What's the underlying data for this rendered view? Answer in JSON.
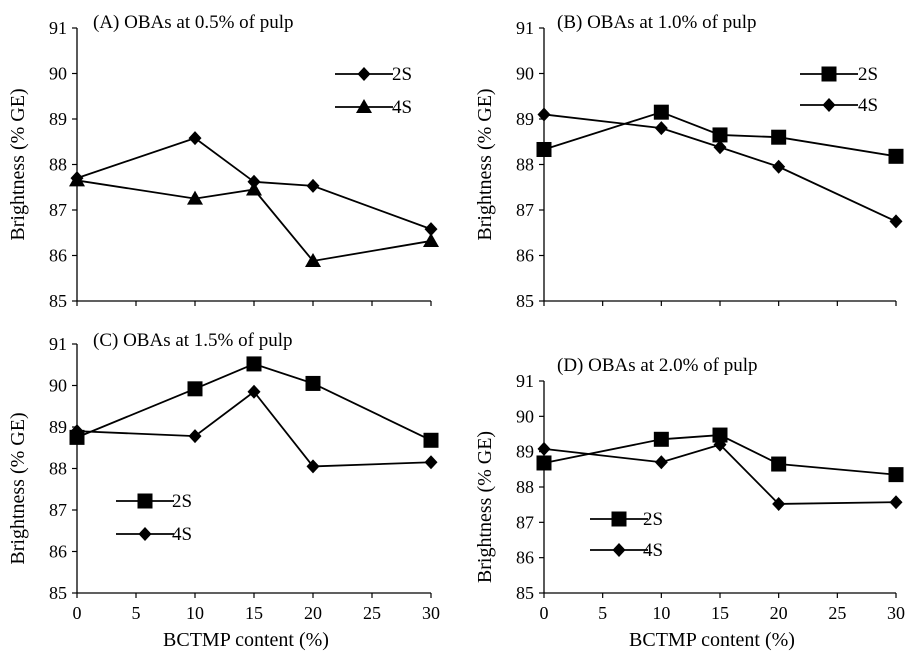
{
  "chart_data": [
    {
      "type": "line",
      "title": "(A) OBAs at 0.5% of pulp",
      "xlabel": "",
      "ylabel": "Brightness (% GE)",
      "x": [
        0,
        10,
        15,
        20,
        30
      ],
      "xticks": [
        "",
        "",
        "",
        "",
        "",
        "",
        ""
      ],
      "xlim": [
        0,
        30
      ],
      "yticks": [
        "85",
        "86",
        "87",
        "88",
        "89",
        "90",
        "91"
      ],
      "ylim": [
        85,
        91
      ],
      "legend_position": "top-right",
      "series": [
        {
          "name": "2S",
          "marker": "diamond",
          "values": [
            87.7,
            88.58,
            87.62,
            87.53,
            86.58
          ]
        },
        {
          "name": "4S",
          "marker": "triangle",
          "values": [
            87.65,
            87.25,
            87.45,
            85.88,
            86.32
          ]
        }
      ]
    },
    {
      "type": "line",
      "title": "(B) OBAs at 1.0% of pulp",
      "xlabel": "",
      "ylabel": "Brightness (% GE)",
      "x": [
        0,
        10,
        15,
        20,
        30
      ],
      "xticks": [
        "",
        "",
        "",
        "",
        "",
        "",
        ""
      ],
      "xlim": [
        0,
        30
      ],
      "yticks": [
        "85",
        "86",
        "87",
        "88",
        "89",
        "90",
        "91"
      ],
      "ylim": [
        85,
        91
      ],
      "legend_position": "top-right",
      "series": [
        {
          "name": "2S",
          "marker": "square",
          "values": [
            88.33,
            89.15,
            88.65,
            88.6,
            88.18
          ]
        },
        {
          "name": "4S",
          "marker": "diamond",
          "values": [
            89.1,
            88.8,
            88.38,
            87.95,
            86.75
          ]
        }
      ]
    },
    {
      "type": "line",
      "title": "(C) OBAs at 1.5% of pulp",
      "xlabel": "BCTMP content (%)",
      "ylabel": "Brightness (% GE)",
      "x": [
        0,
        10,
        15,
        20,
        30
      ],
      "xticks": [
        "0",
        "5",
        "10",
        "15",
        "20",
        "25",
        "30"
      ],
      "xlim": [
        0,
        30
      ],
      "yticks": [
        "85",
        "86",
        "87",
        "88",
        "89",
        "90",
        "91"
      ],
      "ylim": [
        85,
        91
      ],
      "legend_position": "bottom-left",
      "series": [
        {
          "name": "2S",
          "marker": "square",
          "values": [
            88.75,
            89.92,
            90.52,
            90.05,
            88.68
          ]
        },
        {
          "name": "4S",
          "marker": "diamond",
          "values": [
            88.9,
            88.78,
            89.85,
            88.05,
            88.15
          ]
        }
      ]
    },
    {
      "type": "line",
      "title": "(D) OBAs at 2.0% of pulp",
      "xlabel": "BCTMP content (%)",
      "ylabel": "Brightness (% GE)",
      "x": [
        0,
        10,
        15,
        20,
        30
      ],
      "xticks": [
        "0",
        "5",
        "10",
        "15",
        "20",
        "25",
        "30"
      ],
      "xlim": [
        0,
        30
      ],
      "yticks": [
        "85",
        "86",
        "87",
        "88",
        "89",
        "90",
        "91"
      ],
      "ylim": [
        85,
        91
      ],
      "legend_position": "bottom-left",
      "series": [
        {
          "name": "2S",
          "marker": "square",
          "values": [
            88.68,
            89.35,
            89.47,
            88.65,
            88.35
          ]
        },
        {
          "name": "4S",
          "marker": "diamond",
          "values": [
            89.08,
            88.7,
            89.2,
            87.52,
            87.57
          ]
        }
      ]
    }
  ]
}
